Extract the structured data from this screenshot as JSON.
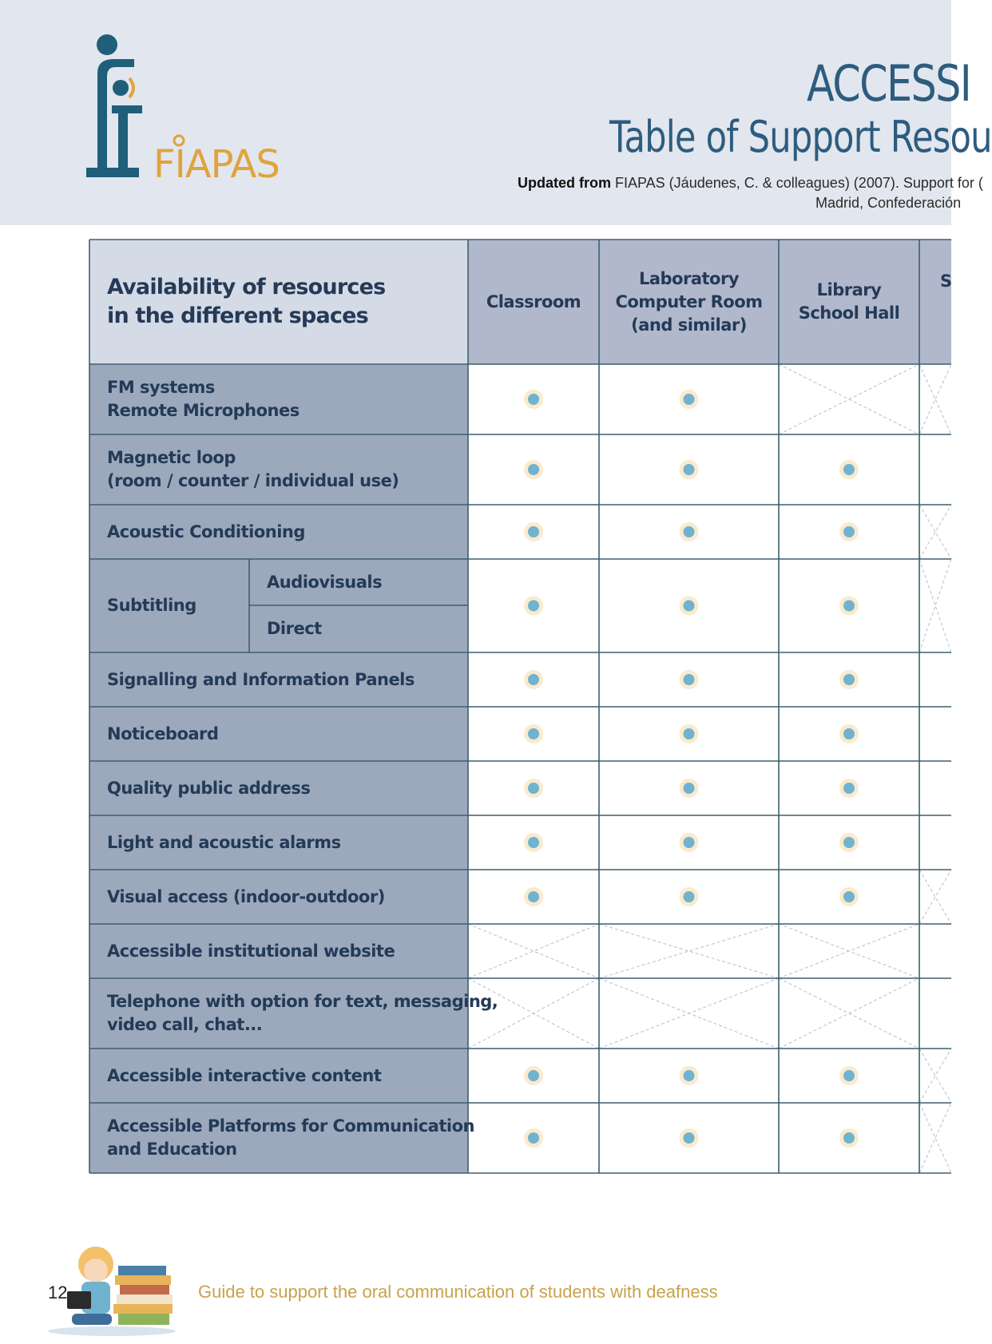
{
  "header": {
    "logo_text": "FIAPAS",
    "title_main": "ACCESSI",
    "title_sub": "Table of Support Resou",
    "source_bold": "Updated from",
    "source_rest": " FIAPAS (Jáudenes, C. & colleagues) (2007). Support for (",
    "source_line2": "Madrid, Confederación",
    "colors": {
      "band": "#e2e6ee",
      "title": "#2d5c7e",
      "logo_teal": "#1f5f7a",
      "logo_orange": "#e0a43c"
    }
  },
  "table": {
    "corner_header": [
      "Availability of resources",
      "in the different spaces"
    ],
    "columns": [
      {
        "lines": [
          "Classroom"
        ]
      },
      {
        "lines": [
          "Laboratory",
          "Computer Room",
          "(and similar)"
        ]
      },
      {
        "lines": [
          "Library",
          "School Hall"
        ]
      },
      {
        "lines": [
          "S"
        ]
      }
    ],
    "rows": [
      {
        "lines": [
          "FM systems",
          "Remote Microphones"
        ],
        "cells": [
          "dot",
          "dot",
          "cross",
          "cross"
        ]
      },
      {
        "lines": [
          "Magnetic loop",
          "(room / counter / individual use)"
        ],
        "cells": [
          "dot",
          "dot",
          "dot",
          "empty"
        ]
      },
      {
        "lines": [
          "Acoustic Conditioning"
        ],
        "cells": [
          "dot",
          "dot",
          "dot",
          "cross"
        ]
      },
      {
        "lines": [
          "Subtitling"
        ],
        "sub": [
          "Audiovisuals",
          "Direct"
        ],
        "cells": [
          "dot",
          "dot",
          "dot",
          "cross"
        ]
      },
      {
        "lines": [
          "Signalling and Information Panels"
        ],
        "cells": [
          "dot",
          "dot",
          "dot",
          "empty"
        ]
      },
      {
        "lines": [
          "Noticeboard"
        ],
        "cells": [
          "dot",
          "dot",
          "dot",
          "empty"
        ]
      },
      {
        "lines": [
          "Quality public address"
        ],
        "cells": [
          "dot",
          "dot",
          "dot",
          "empty"
        ]
      },
      {
        "lines": [
          "Light and acoustic alarms"
        ],
        "cells": [
          "dot",
          "dot",
          "dot",
          "empty"
        ]
      },
      {
        "lines": [
          "Visual access (indoor-outdoor)"
        ],
        "cells": [
          "dot",
          "dot",
          "dot",
          "cross"
        ]
      },
      {
        "lines": [
          "Accessible institutional website"
        ],
        "cells": [
          "cross",
          "cross",
          "cross",
          "empty"
        ]
      },
      {
        "lines": [
          "Telephone with option for text, messaging,",
          "video call, chat..."
        ],
        "cells": [
          "cross",
          "cross",
          "cross",
          "empty"
        ]
      },
      {
        "lines": [
          "Accessible interactive content"
        ],
        "cells": [
          "dot",
          "dot",
          "dot",
          "cross"
        ]
      },
      {
        "lines": [
          "Accessible Platforms for Communication",
          "and Education"
        ],
        "cells": [
          "dot",
          "dot",
          "dot",
          "cross"
        ]
      }
    ],
    "colors": {
      "corner": "#d5dbe6",
      "col_header": "#b1b8cc",
      "row_label": "#9ca9bd",
      "border": "#3e5f6e",
      "dot": "#6fb3cf",
      "dot_halo": "#f6d9a6",
      "cross": "#b7bdd2"
    }
  },
  "footer": {
    "page_number": "12",
    "text": "Guide to support the oral communication of students with deafness"
  }
}
